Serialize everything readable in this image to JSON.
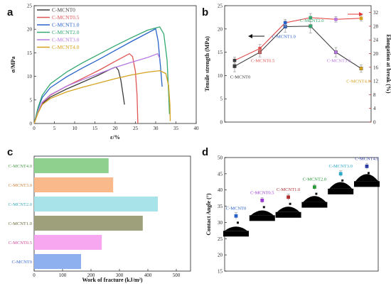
{
  "chart_data": [
    {
      "panel": "a",
      "type": "line",
      "xlabel": "ε/%",
      "ylabel": "σ/MPa",
      "xlim": [
        0,
        40
      ],
      "ylim": [
        0,
        25
      ],
      "xticks": [
        "0",
        "5",
        "10",
        "15",
        "20",
        "25",
        "30",
        "35",
        "40"
      ],
      "yticks": [
        "0",
        "5",
        "10",
        "15",
        "20",
        "25"
      ],
      "legend_position": "top-left",
      "series": [
        {
          "name": "C-MCNT0",
          "color": "#3c3c3c",
          "points": [
            [
              0,
              0
            ],
            [
              1,
              2.5
            ],
            [
              2,
              4.2
            ],
            [
              4,
              5.6
            ],
            [
              8,
              7.3
            ],
            [
              12,
              8.8
            ],
            [
              16,
              10.3
            ],
            [
              19,
              11.6
            ],
            [
              20.2,
              12.0
            ],
            [
              20.8,
              11.3
            ],
            [
              21.4,
              9.2
            ],
            [
              21.9,
              6.4
            ],
            [
              22.3,
              4.0
            ]
          ]
        },
        {
          "name": "C-MCNT0.5",
          "color": "#e05555",
          "points": [
            [
              0,
              0
            ],
            [
              1,
              2.5
            ],
            [
              2,
              4.4
            ],
            [
              4,
              6.0
            ],
            [
              8,
              7.9
            ],
            [
              12,
              9.6
            ],
            [
              16,
              11.3
            ],
            [
              20,
              13.2
            ],
            [
              23.5,
              14.8
            ],
            [
              24.3,
              14.2
            ],
            [
              25.0,
              11.0
            ],
            [
              25.4,
              6.0
            ],
            [
              25.6,
              0
            ]
          ]
        },
        {
          "name": "C-MCNT1.0",
          "color": "#2a62c9",
          "points": [
            [
              0,
              0
            ],
            [
              1,
              3.2
            ],
            [
              2,
              5.5
            ],
            [
              4,
              7.6
            ],
            [
              8,
              9.9
            ],
            [
              12,
              11.8
            ],
            [
              16,
              13.6
            ],
            [
              20,
              15.5
            ],
            [
              24,
              17.4
            ],
            [
              28,
              19.2
            ],
            [
              30.0,
              20.1
            ],
            [
              30.6,
              17.5
            ],
            [
              31.2,
              12.0
            ],
            [
              31.6,
              7.8
            ]
          ]
        },
        {
          "name": "C-MCNT2.0",
          "color": "#33a870",
          "points": [
            [
              0,
              0
            ],
            [
              1,
              3.5
            ],
            [
              2,
              6.0
            ],
            [
              4,
              8.4
            ],
            [
              8,
              10.9
            ],
            [
              12,
              12.9
            ],
            [
              16,
              14.7
            ],
            [
              20,
              16.5
            ],
            [
              24,
              18.2
            ],
            [
              28,
              19.8
            ],
            [
              31.0,
              20.5
            ],
            [
              32.0,
              19.0
            ],
            [
              32.8,
              13.5
            ],
            [
              33.2,
              6.5
            ],
            [
              33.4,
              2.0
            ]
          ]
        },
        {
          "name": "C-MCNT3.0",
          "color": "#b678e0",
          "points": [
            [
              0,
              0
            ],
            [
              1,
              2.6
            ],
            [
              2,
              4.5
            ],
            [
              4,
              6.1
            ],
            [
              8,
              7.9
            ],
            [
              12,
              9.3
            ],
            [
              16,
              10.6
            ],
            [
              20,
              11.9
            ],
            [
              24,
              13.0
            ],
            [
              28,
              14.0
            ],
            [
              30.5,
              14.8
            ],
            [
              31.0,
              13.8
            ]
          ]
        },
        {
          "name": "C-MCNT4.0",
          "color": "#d4a21e",
          "points": [
            [
              0,
              0
            ],
            [
              1,
              2.3
            ],
            [
              2,
              4.0
            ],
            [
              4,
              5.3
            ],
            [
              8,
              6.7
            ],
            [
              12,
              7.7
            ],
            [
              16,
              8.6
            ],
            [
              20,
              9.5
            ],
            [
              24,
              10.3
            ],
            [
              28,
              10.9
            ],
            [
              31.0,
              11.2
            ],
            [
              32.5,
              10.6
            ],
            [
              33.2,
              8.0
            ],
            [
              33.5,
              4.0
            ],
            [
              33.6,
              0.5
            ]
          ]
        }
      ]
    },
    {
      "panel": "b",
      "type": "line",
      "categories": [
        "C-MCNT0",
        "C-MCNT0.5",
        "C-MCNT1.0",
        "C-MCNT2.0",
        "C-MCNT3.0",
        "C-MCNT4.0"
      ],
      "ylabel": "Tensile strength (MPa)",
      "y2label": "Elongation at break (%)",
      "ylim": [
        0,
        25
      ],
      "y2lim": [
        0,
        34
      ],
      "yticks": [
        "0",
        "5",
        "10",
        "15",
        "20",
        "25"
      ],
      "y2ticks": [
        "0",
        "4",
        "8",
        "12",
        "16",
        "20",
        "24",
        "28",
        "32"
      ],
      "series": [
        {
          "name": "Tensile strength",
          "axis": "left",
          "color": "#333333",
          "values": [
            12.0,
            15.0,
            20.5,
            20.6,
            15.0,
            11.5
          ],
          "errors": [
            1.2,
            1.0,
            1.2,
            1.5,
            1.0,
            0.8
          ]
        },
        {
          "name": "Elongation at break",
          "axis": "right",
          "color": "#e03a3a",
          "values": [
            18.0,
            21.5,
            29.0,
            30.5,
            30.0,
            30.3
          ],
          "errors": [
            1.0,
            1.2,
            1.0,
            1.2,
            0.8,
            0.8
          ]
        }
      ],
      "point_colors": [
        "#3c3c3c",
        "#e05555",
        "#2a62c9",
        "#33a870",
        "#b678e0",
        "#d4a21e"
      ]
    },
    {
      "panel": "c",
      "type": "bar",
      "orientation": "horizontal",
      "xlabel": "Work of fracture (kJ/m²)",
      "xlim": [
        0,
        550
      ],
      "xticks": [
        "0",
        "100",
        "200",
        "300",
        "400",
        "500"
      ],
      "categories": [
        "C-MCNT4.0",
        "C-MCNT3.0",
        "C-MCNT2.0",
        "C-MCNT1.0",
        "C-MCNT0.5",
        "C-MCNT0"
      ],
      "values": [
        262,
        278,
        435,
        382,
        238,
        165
      ],
      "bar_colors": [
        "#8fd08f",
        "#f9b98a",
        "#a9e3ea",
        "#9da07a",
        "#f7a6f0",
        "#8fb0ef"
      ],
      "label_colors": [
        "#4a9a4a",
        "#d0803a",
        "#3aa8b8",
        "#6a6a3a",
        "#d04a9a",
        "#3a6ad0"
      ]
    },
    {
      "panel": "d",
      "type": "scatter",
      "ylabel": "Contact Angle (°)",
      "ylim": [
        15,
        50
      ],
      "yticks": [
        "15",
        "20",
        "25",
        "30",
        "35",
        "40",
        "45",
        "50"
      ],
      "categories": [
        "C-MCNT0",
        "C-MCNT0.5",
        "C-MCNT1.0",
        "C-MCNT2.0",
        "C-MCNT3.0",
        "C-MCNT4.0"
      ],
      "values": [
        32.0,
        36.8,
        37.8,
        40.9,
        45.0,
        47.3
      ],
      "errors": [
        1.0,
        0.8,
        0.9,
        0.8,
        0.9,
        0.9
      ],
      "label_colors": [
        "#2a62c9",
        "#9a3ad0",
        "#b03030",
        "#2a9a3a",
        "#2aa8c8",
        "#2a3aa0"
      ]
    }
  ]
}
